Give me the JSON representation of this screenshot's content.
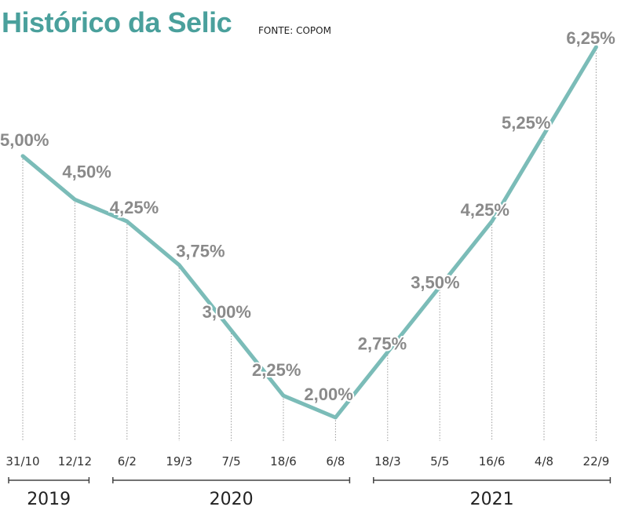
{
  "header": {
    "title": "Histórico da Selic",
    "source": "FONTE: COPOM"
  },
  "colors": {
    "title": "#4aa09c",
    "line": "#7bbcb8",
    "value_label": "#8a8a8a",
    "axis_text": "#333333"
  },
  "chart_data": {
    "type": "line",
    "title": "Histórico da Selic",
    "subtitle": "FONTE: COPOM",
    "xlabel": "",
    "ylabel": "",
    "categories": [
      "31/10",
      "12/12",
      "6/2",
      "19/3",
      "7/5",
      "18/6",
      "6/8",
      "18/3",
      "5/5",
      "16/6",
      "4/8",
      "22/9"
    ],
    "values": [
      5.0,
      4.5,
      4.25,
      3.75,
      3.0,
      2.25,
      2.0,
      2.75,
      3.5,
      4.25,
      5.25,
      6.25
    ],
    "value_labels": [
      "5,00%",
      "4,50%",
      "4,25%",
      "3,75%",
      "3,00%",
      "2,25%",
      "2,00%",
      "2,75%",
      "3,50%",
      "4,25%",
      "5,25%",
      "6,25%"
    ],
    "year_groups": [
      {
        "label": "2019",
        "from": 0,
        "to": 1
      },
      {
        "label": "2020",
        "from": 2,
        "to": 6
      },
      {
        "label": "2021",
        "from": 7,
        "to": 11
      }
    ],
    "grid": false,
    "legend": "none",
    "ylim": [
      2.0,
      6.25
    ]
  }
}
